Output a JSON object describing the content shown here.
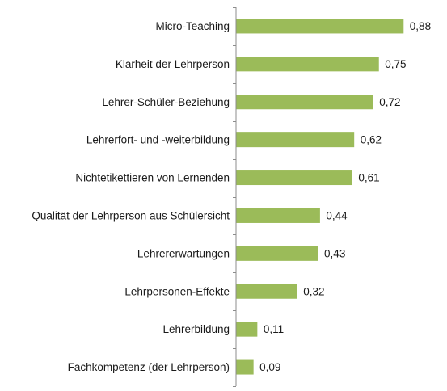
{
  "chart_data": {
    "type": "bar",
    "orientation": "horizontal",
    "title": "",
    "xlabel": "",
    "ylabel": "",
    "xlim": [
      0,
      1.0
    ],
    "grid": false,
    "legend": "none",
    "bar_color": "#9bbb59",
    "axis_color": "#8c8c8c",
    "categories": [
      "Micro-Teaching",
      "Klarheit der Lehrperson",
      "Lehrer-Schüler-Beziehung",
      "Lehrerfort- und -weiterbildung",
      "Nichtetikettieren von Lernenden",
      "Qualität der Lehrperson aus Schülersicht",
      "Lehrererwartungen",
      "Lehrpersonen-Effekte",
      "Lehrerbildung",
      "Fachkompetenz (der Lehrperson)"
    ],
    "values": [
      0.88,
      0.75,
      0.72,
      0.62,
      0.61,
      0.44,
      0.43,
      0.32,
      0.11,
      0.09
    ],
    "value_labels": [
      "0,88",
      "0,75",
      "0,72",
      "0,62",
      "0,61",
      "0,44",
      "0,43",
      "0,32",
      "0,11",
      "0,09"
    ]
  }
}
